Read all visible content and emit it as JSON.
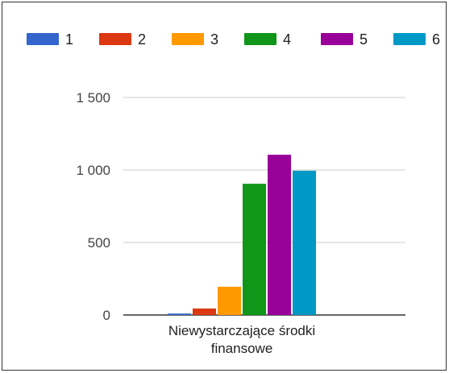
{
  "chart_data": {
    "type": "bar",
    "categories": [
      "Niewystarczające środki finansowe"
    ],
    "category_label_lines": [
      "Niewystarczające środki",
      "finansowe"
    ],
    "series": [
      {
        "name": "1",
        "color": "#3366cc",
        "values": [
          10
        ]
      },
      {
        "name": "2",
        "color": "#dc3912",
        "values": [
          45
        ]
      },
      {
        "name": "3",
        "color": "#ff9900",
        "values": [
          195
        ]
      },
      {
        "name": "4",
        "color": "#109618",
        "values": [
          905
        ]
      },
      {
        "name": "5",
        "color": "#990099",
        "values": [
          1105
        ]
      },
      {
        "name": "6",
        "color": "#0099c6",
        "values": [
          995
        ]
      }
    ],
    "y_ticks": [
      0,
      500,
      1000,
      1500
    ],
    "y_tick_labels": [
      "0",
      "500",
      "1 000",
      "1 500"
    ],
    "ylim": [
      0,
      1500
    ],
    "grid": true,
    "legend_position": "top",
    "title": "",
    "xlabel": "",
    "ylabel": ""
  }
}
